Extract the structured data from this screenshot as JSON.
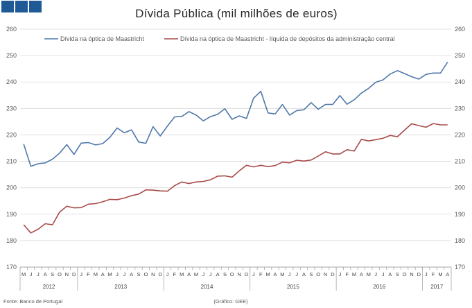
{
  "header": {
    "logo_icon": "blue-squares-logo-icon",
    "logo_color": "#1f5a96"
  },
  "footer": {
    "source": "Fonte: Banco de Portugal",
    "credit": "(Gráfico: GEE)"
  },
  "chart_data": {
    "type": "line",
    "title": "Dívida Pública (mil milhões de euros)",
    "ylim": [
      170,
      260
    ],
    "yticks": [
      170,
      180,
      190,
      200,
      210,
      220,
      230,
      240,
      250,
      260
    ],
    "month_labels": [
      "M",
      "J",
      "J",
      "A",
      "S",
      "O",
      "N",
      "D",
      "J",
      "F",
      "M",
      "A",
      "M",
      "J",
      "J",
      "A",
      "S",
      "O",
      "N",
      "D",
      "J",
      "F",
      "M",
      "A",
      "M",
      "J",
      "J",
      "A",
      "S",
      "O",
      "N",
      "D",
      "J",
      "F",
      "M",
      "A",
      "M",
      "J",
      "J",
      "A",
      "S",
      "O",
      "N",
      "D",
      "J",
      "F",
      "M",
      "A",
      "M",
      "J",
      "J",
      "A",
      "S",
      "O",
      "N",
      "D",
      "J",
      "F",
      "M",
      "A"
    ],
    "years": [
      {
        "label": "2012",
        "start": 0,
        "end": 7
      },
      {
        "label": "2013",
        "start": 8,
        "end": 19
      },
      {
        "label": "2014",
        "start": 20,
        "end": 31
      },
      {
        "label": "2015",
        "start": 32,
        "end": 43
      },
      {
        "label": "2016",
        "start": 44,
        "end": 55
      },
      {
        "label": "2017",
        "start": 56,
        "end": 59
      }
    ],
    "series": [
      {
        "name": "Dívida na óptica de Maastricht",
        "color": "#4f78a8",
        "values": [
          216.5,
          208.1,
          209.1,
          209.4,
          210.8,
          213.1,
          216.3,
          212.6,
          216.9,
          217.1,
          216.2,
          216.7,
          219.1,
          222.6,
          220.8,
          221.9,
          217.3,
          216.8,
          223.1,
          219.6,
          223.3,
          226.8,
          227.0,
          228.8,
          227.5,
          225.3,
          226.9,
          227.8,
          229.9,
          225.9,
          227.2,
          226.2,
          233.9,
          236.5,
          228.3,
          227.9,
          231.5,
          227.5,
          229.2,
          229.5,
          232.2,
          229.7,
          231.5,
          231.5,
          234.9,
          231.6,
          233.3,
          235.8,
          237.6,
          239.9,
          240.8,
          243.0,
          244.3,
          243.2,
          242.0,
          241.1,
          242.9,
          243.4,
          243.4,
          247.5
        ]
      },
      {
        "name": "Dívida na óptica de Maastricht - líquida de depósitos da administração central",
        "color": "#a84a48",
        "values": [
          186.0,
          182.9,
          184.3,
          186.4,
          186.0,
          190.8,
          193.0,
          192.4,
          192.5,
          193.8,
          194.0,
          194.7,
          195.6,
          195.5,
          196.1,
          197.0,
          197.6,
          199.2,
          199.1,
          198.8,
          198.7,
          200.8,
          202.2,
          201.6,
          202.2,
          202.4,
          203.0,
          204.4,
          204.5,
          204.0,
          206.4,
          208.5,
          207.9,
          208.5,
          208.0,
          208.4,
          209.7,
          209.4,
          210.4,
          210.1,
          210.5,
          212.0,
          213.6,
          212.8,
          212.8,
          214.4,
          213.9,
          218.3,
          217.7,
          218.2,
          218.7,
          219.8,
          219.3,
          221.8,
          224.2,
          223.5,
          222.9,
          224.3,
          223.8,
          223.8
        ]
      }
    ]
  }
}
